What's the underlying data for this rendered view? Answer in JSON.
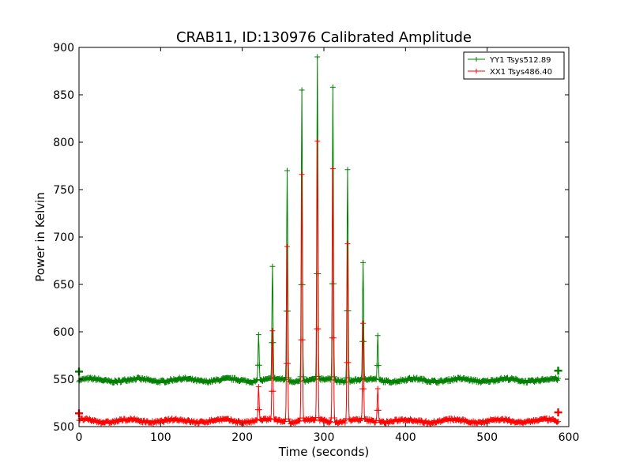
{
  "chart_data": {
    "type": "line",
    "title": "CRAB11, ID:130976 Calibrated Amplitude",
    "xlabel": "Time (seconds)",
    "ylabel": "Power in Kelvin",
    "xlim": [
      0,
      600
    ],
    "ylim": [
      500,
      900
    ],
    "xticks": [
      0,
      100,
      200,
      300,
      400,
      500,
      600
    ],
    "yticks": [
      500,
      550,
      600,
      650,
      700,
      750,
      800,
      850,
      900
    ],
    "legend_position": "top-right",
    "grid": false,
    "series": [
      {
        "name": "YY1 Tsys512.89",
        "color": "#008000",
        "baseline": 549,
        "x_end": 587,
        "peaks": [
          {
            "x": 220,
            "y": 597
          },
          {
            "x": 237,
            "y": 669
          },
          {
            "x": 255,
            "y": 770
          },
          {
            "x": 273,
            "y": 855
          },
          {
            "x": 292,
            "y": 890
          },
          {
            "x": 311,
            "y": 858
          },
          {
            "x": 329,
            "y": 771
          },
          {
            "x": 348,
            "y": 673
          },
          {
            "x": 366,
            "y": 596
          }
        ]
      },
      {
        "name": "XX1 Tsys486.40",
        "color": "#ff0000",
        "baseline": 506,
        "x_end": 587,
        "peaks": [
          {
            "x": 220,
            "y": 542
          },
          {
            "x": 237,
            "y": 601
          },
          {
            "x": 255,
            "y": 690
          },
          {
            "x": 273,
            "y": 766
          },
          {
            "x": 292,
            "y": 801
          },
          {
            "x": 311,
            "y": 772
          },
          {
            "x": 329,
            "y": 693
          },
          {
            "x": 348,
            "y": 609
          },
          {
            "x": 366,
            "y": 540
          }
        ]
      }
    ]
  }
}
